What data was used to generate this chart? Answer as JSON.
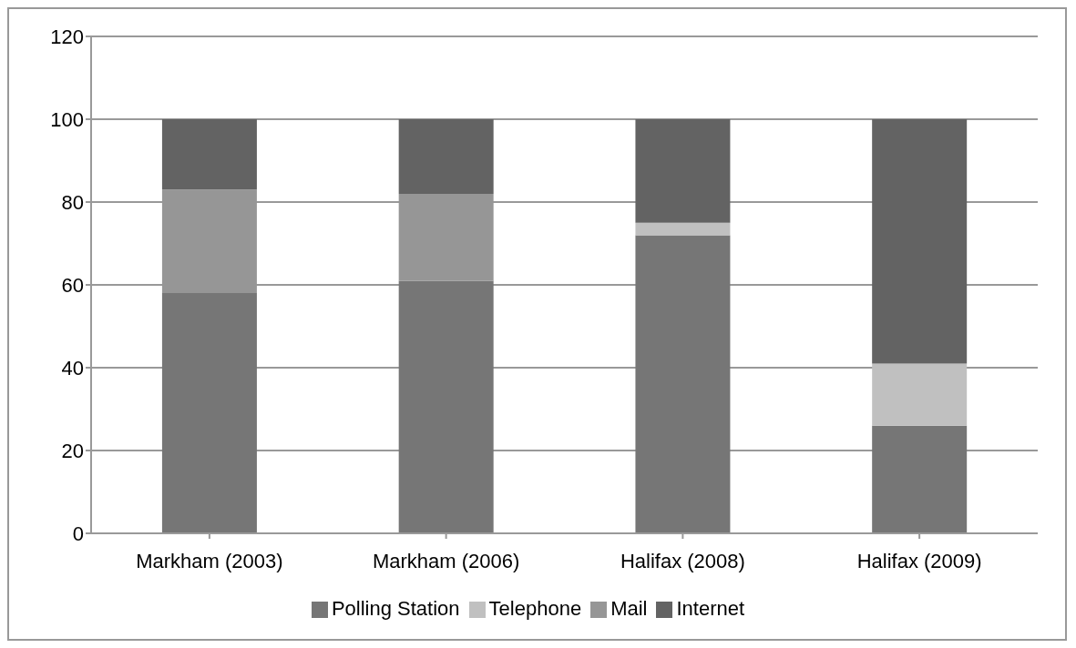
{
  "chart_data": {
    "type": "bar",
    "stacked": true,
    "categories": [
      "Markham (2003)",
      "Markham (2006)",
      "Halifax (2008)",
      "Halifax (2009)"
    ],
    "series": [
      {
        "name": "Polling Station",
        "color": "#767676",
        "values": [
          58,
          61,
          72,
          26
        ]
      },
      {
        "name": "Telephone",
        "color": "#c0c0c0",
        "values": [
          0,
          0,
          3,
          15
        ]
      },
      {
        "name": "Mail",
        "color": "#969696",
        "values": [
          25,
          21,
          0,
          0
        ]
      },
      {
        "name": "Internet",
        "color": "#636363",
        "values": [
          17,
          18,
          25,
          59
        ]
      }
    ],
    "ylim": [
      0,
      120
    ],
    "yticks": [
      0,
      20,
      40,
      60,
      80,
      100,
      120
    ],
    "grid": "y",
    "legend": "bottom"
  }
}
